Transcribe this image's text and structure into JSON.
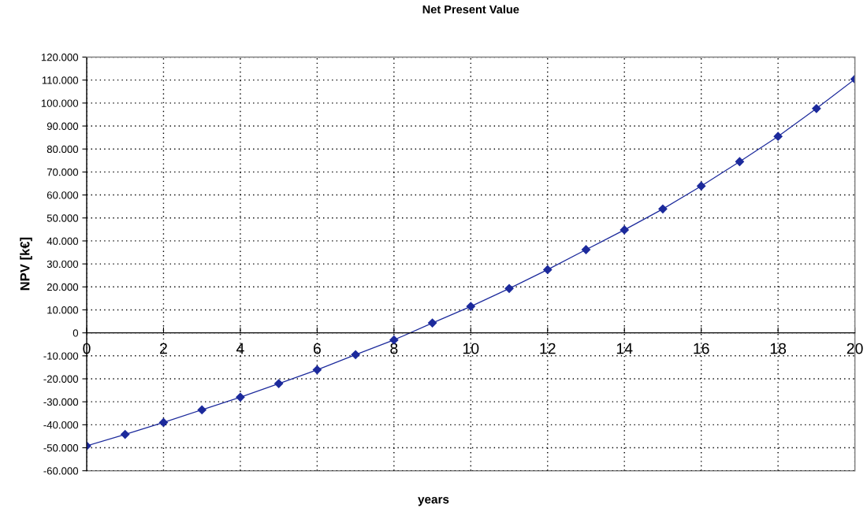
{
  "chart_data": {
    "type": "line",
    "title": "Net Present Value",
    "xlabel": "years",
    "ylabel": "NPV [k€]",
    "x": [
      0,
      1,
      2,
      3,
      4,
      5,
      6,
      7,
      8,
      9,
      10,
      11,
      12,
      13,
      14,
      15,
      16,
      17,
      18,
      19,
      20
    ],
    "series": [
      {
        "color": "#1c2a9c",
        "values": [
          -49200,
          -44200,
          -39000,
          -33500,
          -28000,
          -22100,
          -16100,
          -9500,
          -3100,
          4300,
          11500,
          19300,
          27500,
          36200,
          44800,
          53900,
          63900,
          74500,
          85500,
          97600,
          110400
        ]
      }
    ],
    "xlim": [
      0,
      20
    ],
    "xticks": [
      0,
      2,
      4,
      6,
      8,
      10,
      12,
      14,
      16,
      18,
      20
    ],
    "ylim": [
      -60000,
      120000
    ],
    "yticks": [
      {
        "value": -60000,
        "label": "-60.000"
      },
      {
        "value": -50000,
        "label": "-50.000"
      },
      {
        "value": -40000,
        "label": "-40.000"
      },
      {
        "value": -30000,
        "label": "-30.000"
      },
      {
        "value": -20000,
        "label": "-20.000"
      },
      {
        "value": -10000,
        "label": "-10.000"
      },
      0,
      {
        "value": 10000,
        "label": "10.000"
      },
      {
        "value": 20000,
        "label": "20.000"
      },
      {
        "value": 30000,
        "label": "30.000"
      },
      {
        "value": 40000,
        "label": "40.000"
      },
      {
        "value": 50000,
        "label": "50.000"
      },
      {
        "value": 60000,
        "label": "60.000"
      },
      {
        "value": 70000,
        "label": "70.000"
      },
      {
        "value": 80000,
        "label": "80.000"
      },
      {
        "value": 90000,
        "label": "90.000"
      },
      {
        "value": 100000,
        "label": "100.000"
      },
      {
        "value": 110000,
        "label": "110.000"
      },
      {
        "value": 120000,
        "label": "120.000"
      }
    ],
    "grid": true,
    "marker": "diamond",
    "line_style": "solid",
    "legend": false
  }
}
